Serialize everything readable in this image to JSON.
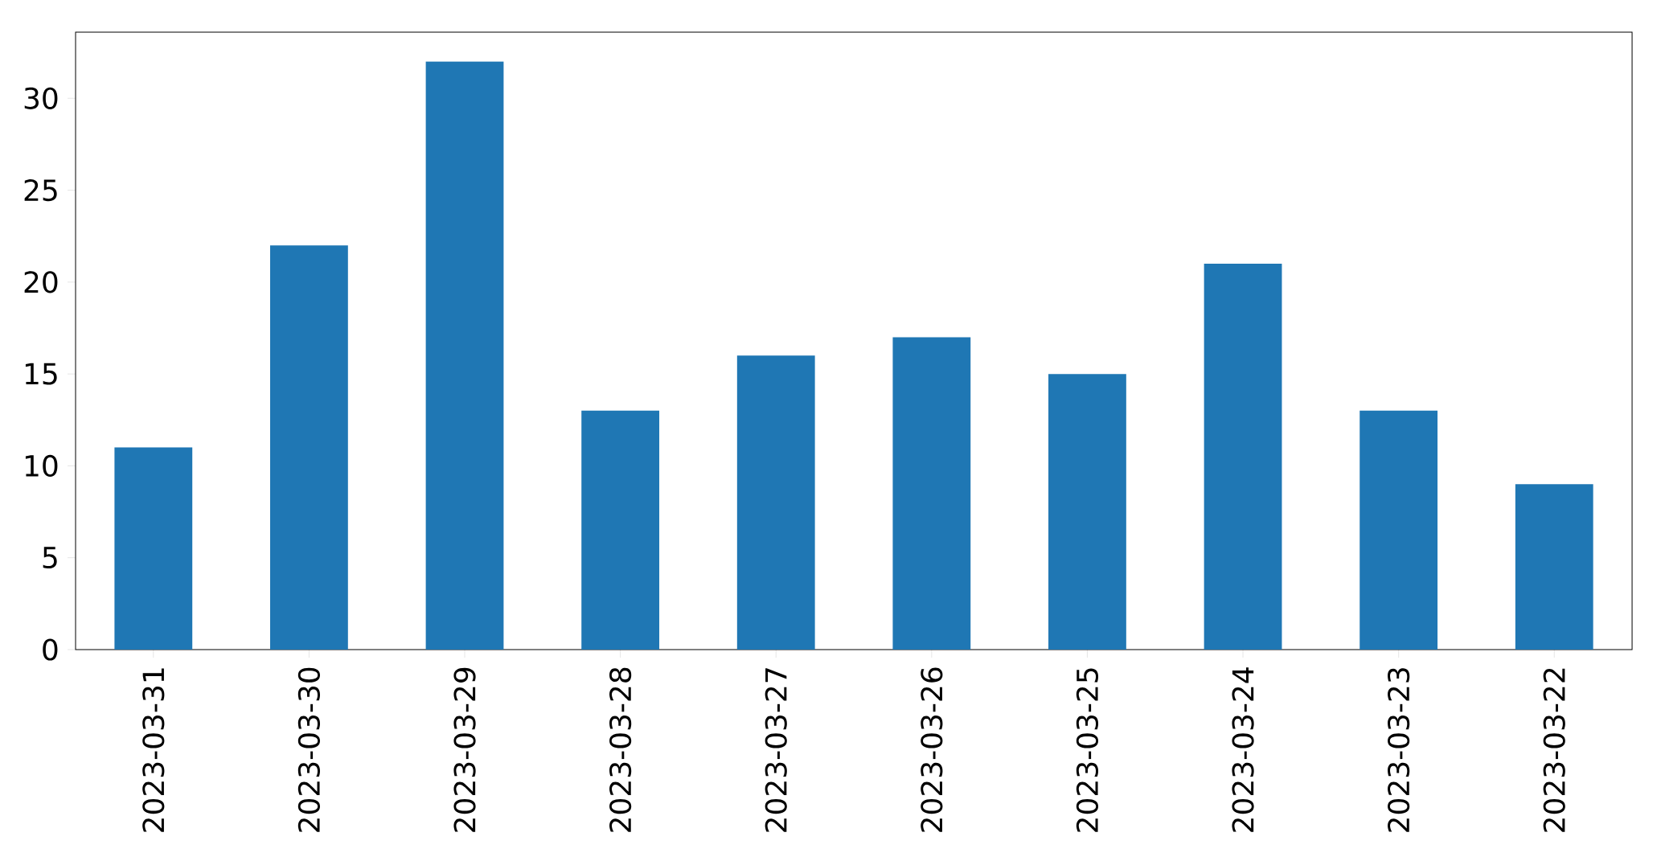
{
  "chart_data": {
    "type": "bar",
    "categories": [
      "2023-03-31",
      "2023-03-30",
      "2023-03-29",
      "2023-03-28",
      "2023-03-27",
      "2023-03-26",
      "2023-03-25",
      "2023-03-24",
      "2023-03-23",
      "2023-03-22"
    ],
    "values": [
      11,
      22,
      32,
      13,
      16,
      17,
      15,
      21,
      13,
      9
    ],
    "color": "#1f77b4",
    "ylim": [
      0,
      33.6
    ],
    "yticks": [
      0,
      5,
      10,
      15,
      20,
      25,
      30
    ]
  }
}
